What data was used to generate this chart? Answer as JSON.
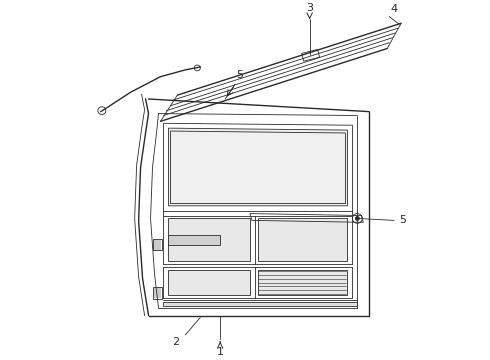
{
  "background_color": "#ffffff",
  "line_color": "#2a2a2a",
  "lw_thin": 0.6,
  "lw_med": 1.0,
  "lw_thick": 1.4,
  "label_fontsize": 8,
  "figsize": [
    4.9,
    3.6
  ],
  "dpi": 100
}
